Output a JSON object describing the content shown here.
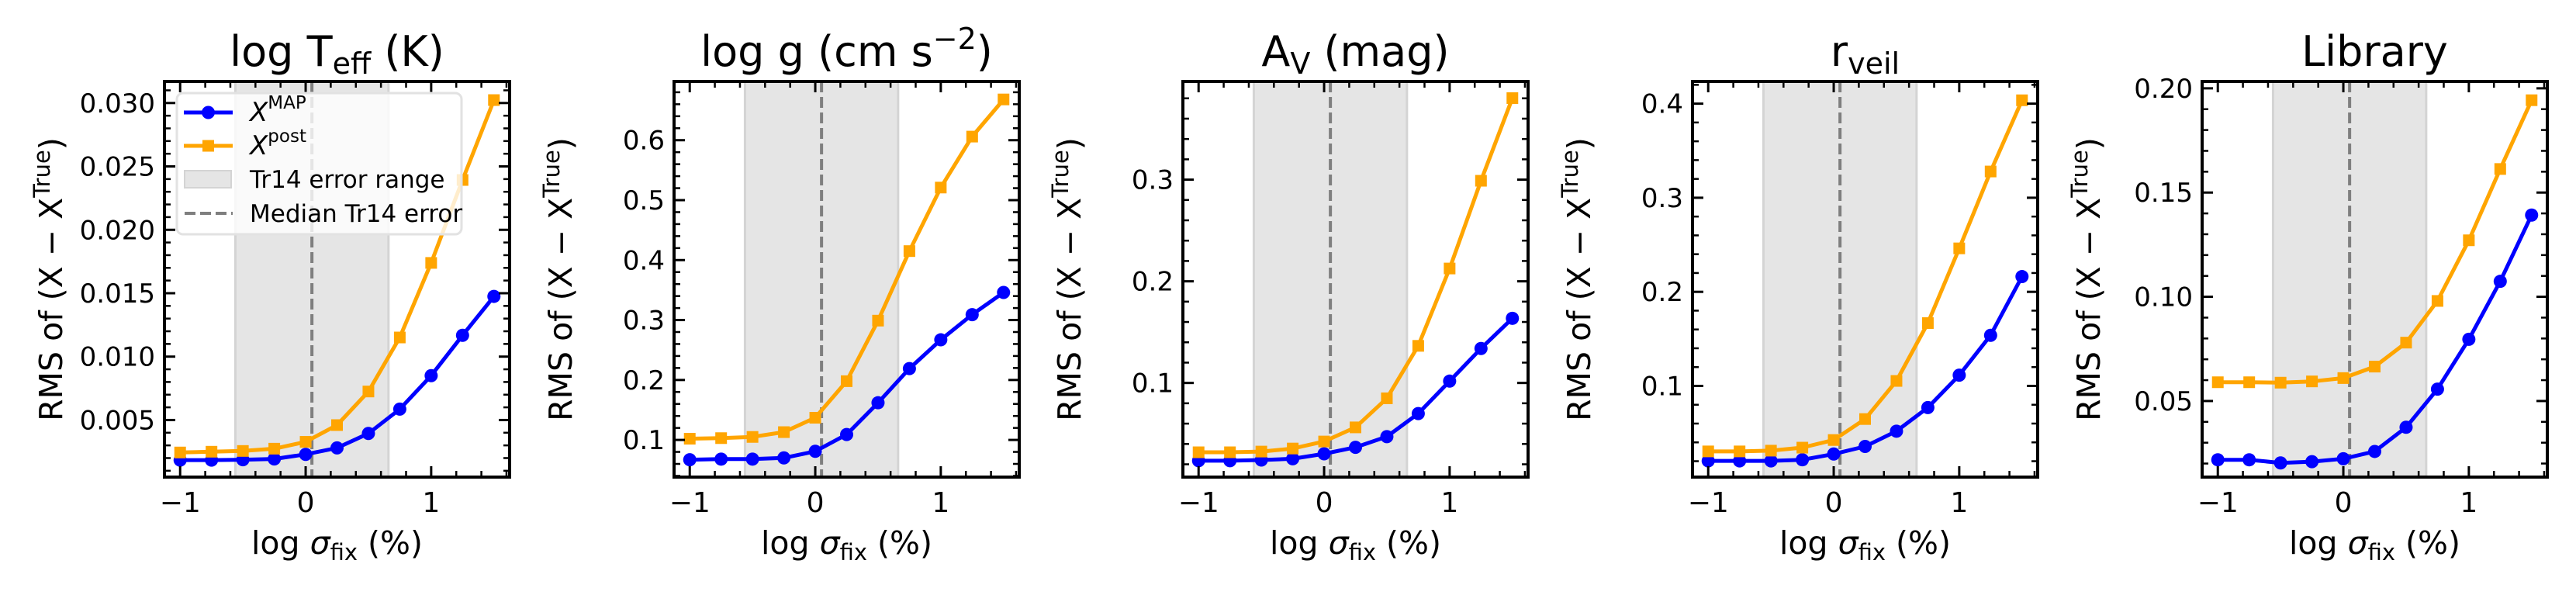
{
  "chart_data": [
    {
      "type": "line",
      "title": "log T_eff (K)",
      "title_parts": [
        [
          "log T",
          ""
        ],
        [
          "eff",
          "sub"
        ],
        [
          " (K)",
          ""
        ]
      ],
      "xlabel": "log σ_fix (%)",
      "ylabel": "RMS of (X − X^True)",
      "x": [
        -1.0,
        -0.75,
        -0.5,
        -0.25,
        0.0,
        0.25,
        0.5,
        0.75,
        1.0,
        1.25,
        1.5
      ],
      "xlim": [
        -1.125,
        1.625
      ],
      "ylim": [
        0.0005,
        0.0317
      ],
      "xticks": [
        -1,
        0,
        1
      ],
      "xtick_labels": [
        "−1",
        "0",
        "1"
      ],
      "xminor_step": 0.2,
      "yticks": [
        0.005,
        0.01,
        0.015,
        0.02,
        0.025,
        0.03
      ],
      "ytick_labels": [
        "0.005",
        "0.010",
        "0.015",
        "0.020",
        "0.025",
        "0.030"
      ],
      "yminor_step": 0.001,
      "series": [
        {
          "name": "X^MAP",
          "values": [
            0.00184,
            0.00184,
            0.00187,
            0.00193,
            0.00229,
            0.0028,
            0.00394,
            0.00586,
            0.0085,
            0.01168,
            0.01475
          ]
        },
        {
          "name": "X^post",
          "values": [
            0.00244,
            0.0025,
            0.00256,
            0.00274,
            0.00328,
            0.0046,
            0.00725,
            0.01151,
            0.01739,
            0.02393,
            0.03023
          ]
        }
      ],
      "error_range": [
        -0.56,
        0.66
      ],
      "median_error": 0.05,
      "legend": true,
      "legend_placement": "upper-left"
    },
    {
      "type": "line",
      "title": "log g (cm s^−2)",
      "title_parts": [
        [
          "log g (cm s",
          ""
        ],
        [
          "−2",
          "sup"
        ],
        [
          ")",
          ""
        ]
      ],
      "xlabel": "log σ_fix (%)",
      "ylabel": "RMS of (X − X^True)",
      "x": [
        -1.0,
        -0.75,
        -0.5,
        -0.25,
        0.0,
        0.25,
        0.5,
        0.75,
        1.0,
        1.25,
        1.5
      ],
      "xlim": [
        -1.125,
        1.625
      ],
      "ylim": [
        0.038,
        0.698
      ],
      "xticks": [
        -1,
        0,
        1
      ],
      "xtick_labels": [
        "−1",
        "0",
        "1"
      ],
      "xminor_step": 0.2,
      "yticks": [
        0.1,
        0.2,
        0.3,
        0.4,
        0.5,
        0.6
      ],
      "ytick_labels": [
        "0.1",
        "0.2",
        "0.3",
        "0.4",
        "0.5",
        "0.6"
      ],
      "yminor_step": 0.02,
      "series": [
        {
          "name": "X^MAP",
          "values": [
            0.067,
            0.068,
            0.068,
            0.07,
            0.081,
            0.109,
            0.162,
            0.219,
            0.267,
            0.309,
            0.346
          ]
        },
        {
          "name": "X^post",
          "values": [
            0.102,
            0.103,
            0.105,
            0.113,
            0.137,
            0.198,
            0.299,
            0.415,
            0.521,
            0.606,
            0.668
          ]
        }
      ],
      "error_range": [
        -0.56,
        0.66
      ],
      "median_error": 0.05,
      "legend": false
    },
    {
      "type": "line",
      "title": "A_V (mag)",
      "title_parts": [
        [
          "A",
          ""
        ],
        [
          "V",
          "sub"
        ],
        [
          " (mag)",
          ""
        ]
      ],
      "xlabel": "log σ_fix (%)",
      "ylabel": "RMS of (X − X^True)",
      "x": [
        -1.0,
        -0.75,
        -0.5,
        -0.25,
        0.0,
        0.25,
        0.5,
        0.75,
        1.0,
        1.25,
        1.5
      ],
      "xlim": [
        -1.125,
        1.625
      ],
      "ylim": [
        0.0074,
        0.3966
      ],
      "xticks": [
        -1,
        0,
        1
      ],
      "xtick_labels": [
        "−1",
        "0",
        "1"
      ],
      "xminor_step": 0.2,
      "yticks": [
        0.1,
        0.2,
        0.3
      ],
      "ytick_labels": [
        "0.1",
        "0.2",
        "0.3"
      ],
      "yminor_step": 0.02,
      "series": [
        {
          "name": "X^MAP",
          "values": [
            0.0235,
            0.0235,
            0.0242,
            0.0254,
            0.0303,
            0.0367,
            0.0472,
            0.0699,
            0.1018,
            0.1339,
            0.1636
          ]
        },
        {
          "name": "X^post",
          "values": [
            0.0318,
            0.0318,
            0.0325,
            0.0355,
            0.0424,
            0.0563,
            0.0849,
            0.1365,
            0.2126,
            0.2989,
            0.3802
          ]
        }
      ],
      "error_range": [
        -0.56,
        0.66
      ],
      "median_error": 0.05,
      "legend": false
    },
    {
      "type": "line",
      "title": "r_veil",
      "title_parts": [
        [
          "r",
          ""
        ],
        [
          "veil",
          "sub"
        ]
      ],
      "xlabel": "log σ_fix (%)",
      "ylabel": "RMS of (X − X^True)",
      "x": [
        -1.0,
        -0.75,
        -0.5,
        -0.25,
        0.0,
        0.25,
        0.5,
        0.75,
        1.0,
        1.25,
        1.5
      ],
      "xlim": [
        -1.125,
        1.625
      ],
      "ylim": [
        0.0031,
        0.4236
      ],
      "xticks": [
        -1,
        0,
        1
      ],
      "xtick_labels": [
        "−1",
        "0",
        "1"
      ],
      "xminor_step": 0.2,
      "yticks": [
        0.1,
        0.2,
        0.3,
        0.4
      ],
      "ytick_labels": [
        "0.1",
        "0.2",
        "0.3",
        "0.4"
      ],
      "yminor_step": 0.02,
      "series": [
        {
          "name": "X^MAP",
          "values": [
            0.0203,
            0.0203,
            0.0203,
            0.0215,
            0.0276,
            0.0357,
            0.0519,
            0.077,
            0.1114,
            0.1538,
            0.2162
          ]
        },
        {
          "name": "X^post",
          "values": [
            0.0304,
            0.0304,
            0.0312,
            0.0344,
            0.0425,
            0.0648,
            0.1053,
            0.1668,
            0.2462,
            0.3279,
            0.4036
          ]
        }
      ],
      "error_range": [
        -0.56,
        0.66
      ],
      "median_error": 0.05,
      "legend": false
    },
    {
      "type": "line",
      "title": "Library",
      "title_parts": [
        [
          "Library",
          ""
        ]
      ],
      "xlabel": "log σ_fix (%)",
      "ylabel": "RMS of (X − X^True)",
      "x": [
        -1.0,
        -0.75,
        -0.5,
        -0.25,
        0.0,
        0.25,
        0.5,
        0.75,
        1.0,
        1.25,
        1.5
      ],
      "xlim": [
        -1.125,
        1.625
      ],
      "ylim": [
        0.0135,
        0.2033
      ],
      "xticks": [
        -1,
        0,
        1
      ],
      "xtick_labels": [
        "−1",
        "0",
        "1"
      ],
      "xminor_step": 0.2,
      "yticks": [
        0.05,
        0.1,
        0.15,
        0.2
      ],
      "ytick_labels": [
        "0.05",
        "0.10",
        "0.15",
        "0.20"
      ],
      "yminor_step": 0.01,
      "series": [
        {
          "name": "X^MAP",
          "values": [
            0.0218,
            0.0218,
            0.0203,
            0.0209,
            0.0223,
            0.0258,
            0.0374,
            0.0557,
            0.0796,
            0.1074,
            0.1392
          ]
        },
        {
          "name": "X^post",
          "values": [
            0.059,
            0.059,
            0.0588,
            0.0594,
            0.061,
            0.0665,
            0.078,
            0.098,
            0.1271,
            0.1613,
            0.1943
          ]
        }
      ],
      "error_range": [
        -0.56,
        0.66
      ],
      "median_error": 0.05,
      "legend": false
    }
  ],
  "legend": {
    "entries": [
      {
        "label_main": "X",
        "label_sup": "MAP",
        "kind": "line-circle"
      },
      {
        "label_main": "X",
        "label_sup": "post",
        "kind": "line-square"
      },
      {
        "label": "Tr14 error range",
        "kind": "patch"
      },
      {
        "label": "Median Tr14 error",
        "kind": "dashed"
      }
    ]
  },
  "axis_text": {
    "xlabel_main": "log ",
    "xlabel_sym": "σ",
    "xlabel_sub": "fix",
    "xlabel_tail": " (%)",
    "ylabel_main": "RMS of (X − X",
    "ylabel_sup": "True",
    "ylabel_tail": ")"
  },
  "colors": {
    "map": "#0000ff",
    "post": "#ffa500",
    "band": "#e5e5e5",
    "median": "#7f7f7f"
  }
}
